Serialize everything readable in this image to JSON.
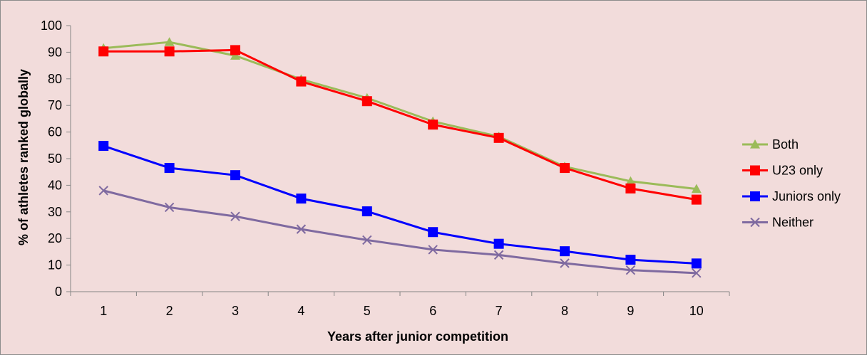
{
  "chart_data": {
    "type": "line",
    "title": "",
    "xlabel": "Years after junior competition",
    "ylabel": "% of athletes ranked globally",
    "x": [
      1,
      2,
      3,
      4,
      5,
      6,
      7,
      8,
      9,
      10
    ],
    "ylim": [
      0,
      100
    ],
    "yticks": [
      0,
      10,
      20,
      30,
      40,
      50,
      60,
      70,
      80,
      90,
      100
    ],
    "grid": false,
    "legend_position": "right",
    "series": [
      {
        "name": "Both",
        "color": "#9bbb59",
        "marker": "triangle",
        "values": [
          91.5,
          93.8,
          88.7,
          79.8,
          72.8,
          64.0,
          58.3,
          47.0,
          41.5,
          38.6
        ]
      },
      {
        "name": "U23 only",
        "color": "#ff0000",
        "marker": "square",
        "values": [
          90.3,
          90.3,
          90.8,
          79.0,
          71.6,
          62.8,
          57.8,
          46.5,
          38.8,
          34.6
        ]
      },
      {
        "name": "Juniors only",
        "color": "#0000ff",
        "marker": "square",
        "values": [
          54.8,
          46.5,
          43.8,
          35.0,
          30.2,
          22.4,
          18.0,
          15.2,
          12.0,
          10.6
        ]
      },
      {
        "name": "Neither",
        "color": "#7f6aa0",
        "marker": "x",
        "values": [
          38.0,
          31.7,
          28.3,
          23.5,
          19.4,
          15.8,
          13.8,
          10.7,
          8.1,
          7.0
        ]
      }
    ]
  }
}
